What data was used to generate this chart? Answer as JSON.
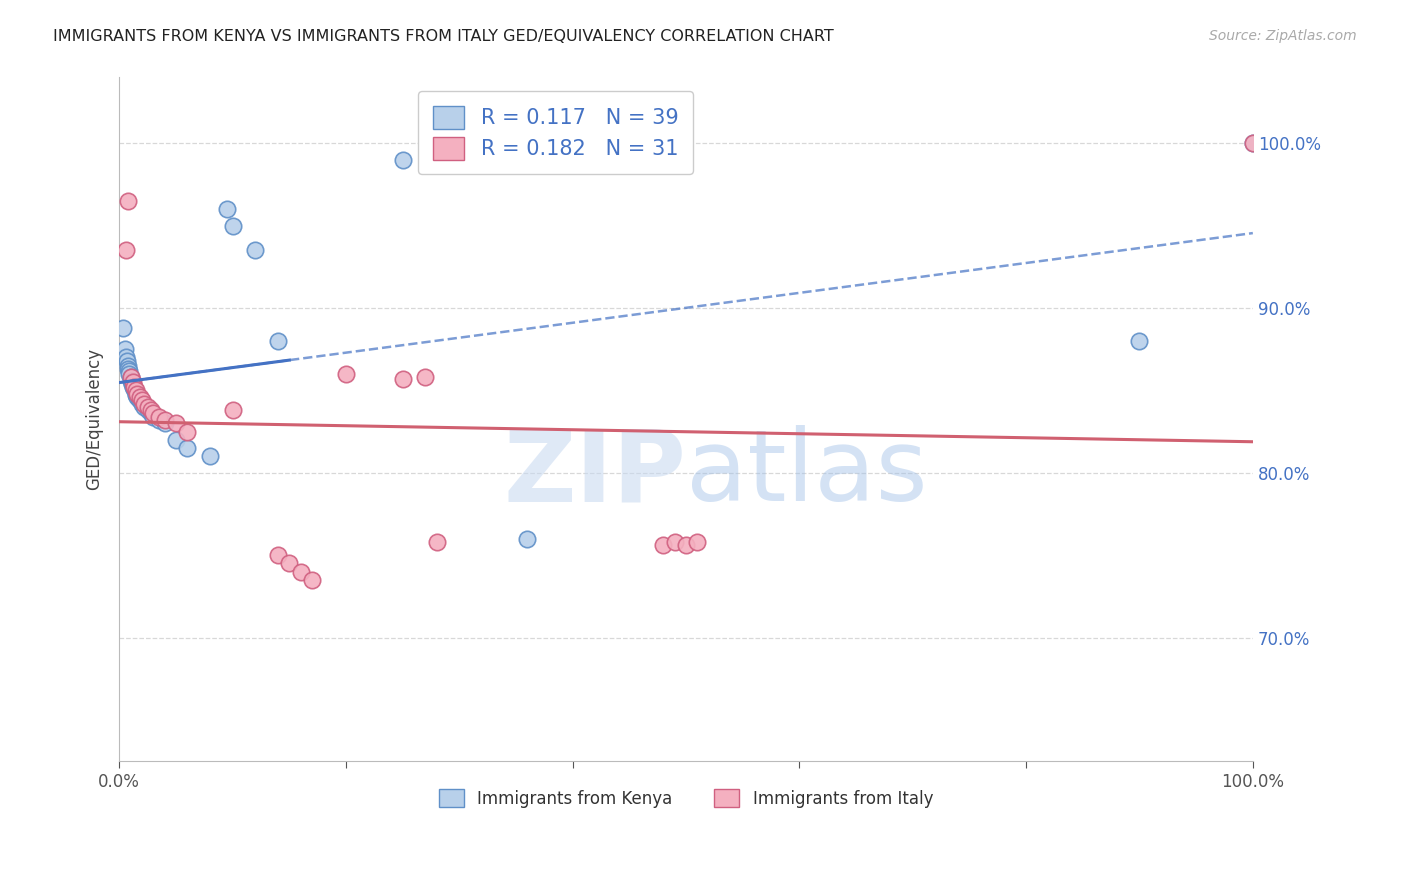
{
  "title": "IMMIGRANTS FROM KENYA VS IMMIGRANTS FROM ITALY GED/EQUIVALENCY CORRELATION CHART",
  "source": "Source: ZipAtlas.com",
  "ylabel": "GED/Equivalency",
  "ytick_labels": [
    "70.0%",
    "80.0%",
    "90.0%",
    "100.0%"
  ],
  "ytick_values": [
    0.7,
    0.8,
    0.9,
    1.0
  ],
  "xlim": [
    0.0,
    1.0
  ],
  "ylim": [
    0.625,
    1.04
  ],
  "R_kenya": 0.117,
  "N_kenya": 39,
  "R_italy": 0.182,
  "N_italy": 31,
  "kenya_face_color": "#b8d0ea",
  "kenya_edge_color": "#6090c8",
  "italy_face_color": "#f4b0c0",
  "italy_edge_color": "#d06080",
  "kenya_line_color": "#4472c4",
  "italy_line_color": "#d06070",
  "kenya_scatter_x": [
    0.003,
    0.005,
    0.006,
    0.007,
    0.008,
    0.008,
    0.009,
    0.009,
    0.01,
    0.01,
    0.011,
    0.011,
    0.012,
    0.012,
    0.013,
    0.014,
    0.015,
    0.015,
    0.016,
    0.017,
    0.018,
    0.02,
    0.022,
    0.025,
    0.028,
    0.03,
    0.035,
    0.04,
    0.05,
    0.06,
    0.08,
    0.095,
    0.1,
    0.12,
    0.14,
    0.25,
    0.36,
    0.9,
    1.0
  ],
  "kenya_scatter_y": [
    0.888,
    0.875,
    0.87,
    0.868,
    0.865,
    0.863,
    0.862,
    0.86,
    0.858,
    0.856,
    0.855,
    0.854,
    0.853,
    0.852,
    0.851,
    0.85,
    0.848,
    0.847,
    0.846,
    0.845,
    0.844,
    0.842,
    0.84,
    0.838,
    0.836,
    0.834,
    0.832,
    0.83,
    0.82,
    0.815,
    0.81,
    0.96,
    0.95,
    0.935,
    0.88,
    0.99,
    0.76,
    0.88,
    1.0
  ],
  "italy_scatter_x": [
    0.006,
    0.008,
    0.01,
    0.012,
    0.013,
    0.015,
    0.016,
    0.018,
    0.02,
    0.022,
    0.025,
    0.028,
    0.03,
    0.035,
    0.04,
    0.05,
    0.06,
    0.1,
    0.14,
    0.15,
    0.16,
    0.17,
    0.2,
    0.25,
    0.27,
    0.28,
    0.48,
    0.49,
    0.5,
    0.51,
    1.0
  ],
  "italy_scatter_y": [
    0.935,
    0.965,
    0.858,
    0.855,
    0.852,
    0.85,
    0.848,
    0.846,
    0.844,
    0.842,
    0.84,
    0.838,
    0.836,
    0.834,
    0.832,
    0.83,
    0.825,
    0.838,
    0.75,
    0.745,
    0.74,
    0.735,
    0.86,
    0.857,
    0.858,
    0.758,
    0.756,
    0.758,
    0.756,
    0.758,
    1.0
  ],
  "watermark_zip": "ZIP",
  "watermark_atlas": "atlas",
  "background_color": "#ffffff",
  "grid_color": "#d8d8d8",
  "grid_style": "--"
}
